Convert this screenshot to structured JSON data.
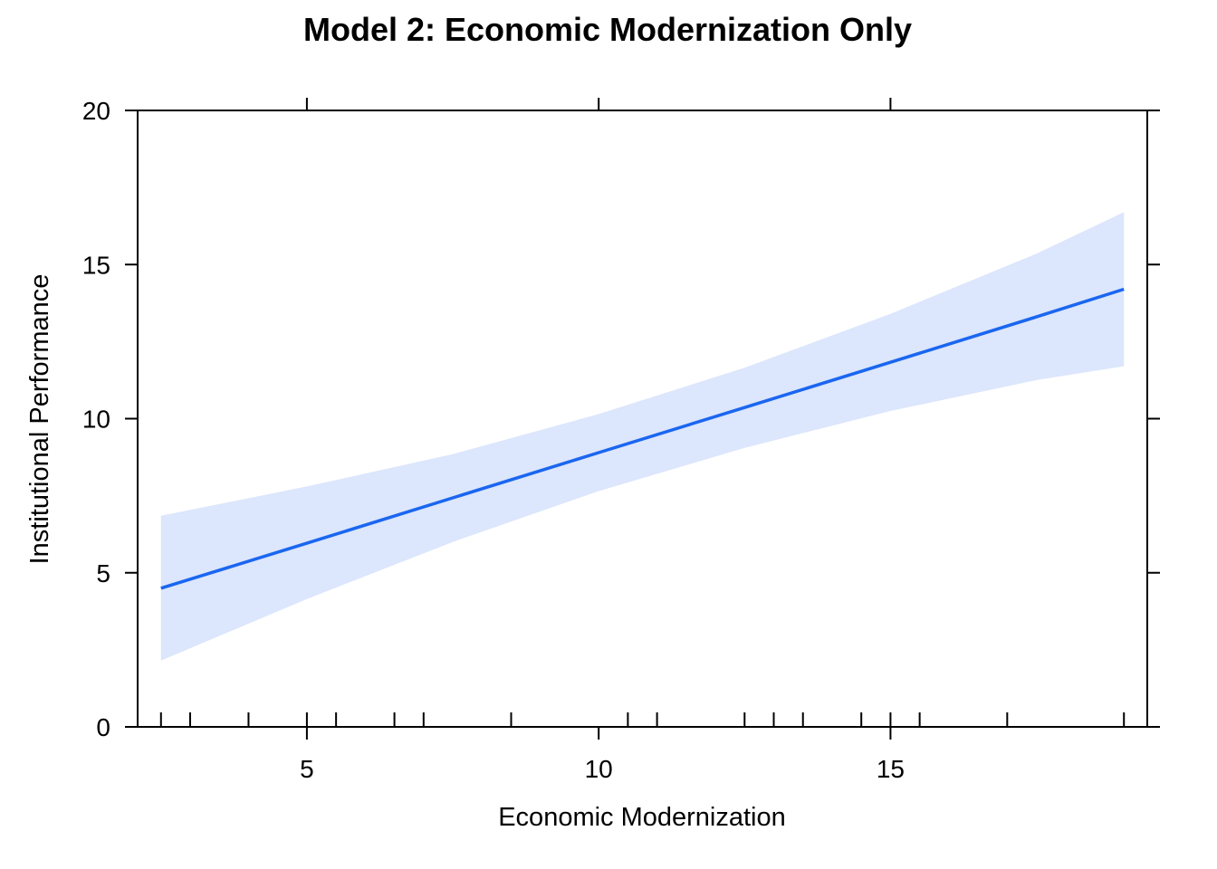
{
  "chart_data": {
    "type": "line",
    "title": "Model 2: Economic Modernization Only",
    "xlabel": "Economic Modernization",
    "ylabel": "Institutional Performance",
    "xlim": [
      2.1,
      19.4
    ],
    "ylim": [
      0,
      20
    ],
    "x_ticks": [
      5,
      10,
      15
    ],
    "y_ticks": [
      0,
      5,
      10,
      15,
      20
    ],
    "x": [
      2.5,
      5.0,
      7.5,
      10.0,
      12.5,
      15.0,
      17.5,
      19.0
    ],
    "series": [
      {
        "values": [
          4.5,
          5.96,
          7.43,
          8.9,
          10.36,
          11.83,
          13.3,
          14.2
        ]
      }
    ],
    "ci_upper": [
      6.85,
      7.8,
      8.85,
      10.15,
      11.65,
      13.4,
      15.35,
      16.7
    ],
    "ci_lower": [
      2.15,
      4.15,
      6.0,
      7.65,
      9.05,
      10.25,
      11.25,
      11.7
    ],
    "rug_x": [
      2.5,
      3.0,
      4.0,
      5.0,
      5.5,
      6.5,
      7.0,
      8.5,
      10.5,
      11.0,
      12.5,
      13.0,
      13.5,
      14.5,
      15.0,
      15.5,
      17.0,
      19.0
    ],
    "line_color": "#1a66f0",
    "band_color": "#dce6fc",
    "grid": false
  }
}
